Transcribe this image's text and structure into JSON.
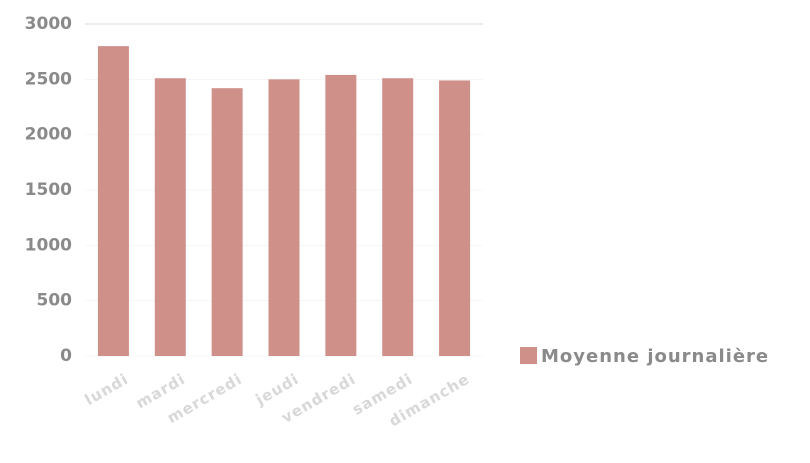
{
  "chart_data": {
    "type": "bar",
    "categories": [
      "lundi",
      "mardi",
      "mercredi",
      "jeudi",
      "vendredi",
      "samedi",
      "dimanche"
    ],
    "series": [
      {
        "name": "Moyenne journalière",
        "color": "#d0908a",
        "values": [
          2800,
          2510,
          2420,
          2500,
          2540,
          2510,
          2490
        ]
      }
    ],
    "ylim": [
      0,
      3000
    ],
    "yticks": [
      0,
      500,
      1000,
      1500,
      2000,
      2500,
      3000
    ],
    "grid": true,
    "legend": "right"
  }
}
